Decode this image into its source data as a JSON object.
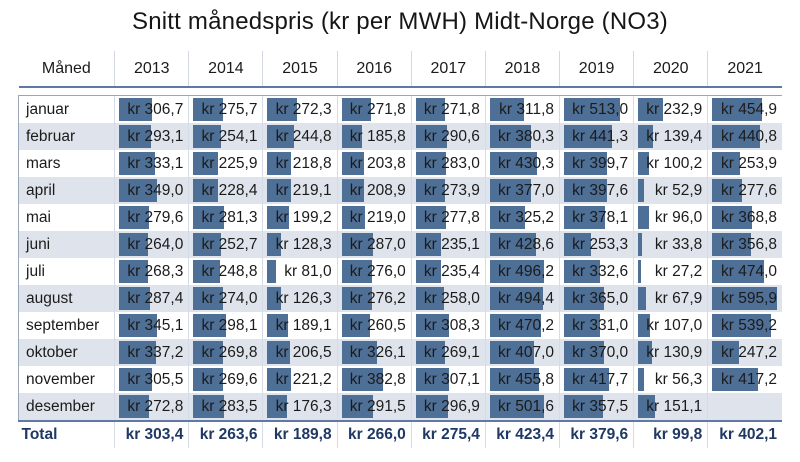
{
  "title": "Snitt månedspris (kr per MWH) Midt-Norge (NO3)",
  "chart_data": {
    "type": "table",
    "title": "Snitt månedspris (kr per MWH) Midt-Norge (NO3)",
    "row_header": "Måned",
    "years": [
      "2013",
      "2014",
      "2015",
      "2016",
      "2017",
      "2018",
      "2019",
      "2020",
      "2021"
    ],
    "value_max": 600,
    "rows": [
      {
        "month": "januar",
        "values": [
          306.7,
          275.7,
          272.3,
          271.8,
          271.8,
          311.8,
          513.0,
          232.9,
          454.9
        ],
        "labels": [
          "kr 306,7",
          "kr 275,7",
          "kr 272,3",
          "kr 271,8",
          "kr 271,8",
          "kr 311,8",
          "kr 513,0",
          "kr 232,9",
          "kr 454,9"
        ]
      },
      {
        "month": "februar",
        "values": [
          293.1,
          254.1,
          244.8,
          185.8,
          290.6,
          380.3,
          441.3,
          139.4,
          440.8
        ],
        "labels": [
          "kr 293,1",
          "kr 254,1",
          "kr 244,8",
          "kr 185,8",
          "kr 290,6",
          "kr 380,3",
          "kr 441,3",
          "kr 139,4",
          "kr 440,8"
        ]
      },
      {
        "month": "mars",
        "values": [
          333.1,
          225.9,
          218.8,
          203.8,
          283.0,
          430.3,
          399.7,
          100.2,
          253.9
        ],
        "labels": [
          "kr 333,1",
          "kr 225,9",
          "kr 218,8",
          "kr 203,8",
          "kr 283,0",
          "kr 430,3",
          "kr 399,7",
          "kr 100,2",
          "kr 253,9"
        ]
      },
      {
        "month": "april",
        "values": [
          349.0,
          228.4,
          219.1,
          208.9,
          273.9,
          377.0,
          397.6,
          52.9,
          277.6
        ],
        "labels": [
          "kr 349,0",
          "kr 228,4",
          "kr 219,1",
          "kr 208,9",
          "kr 273,9",
          "kr 377,0",
          "kr 397,6",
          "kr 52,9",
          "kr 277,6"
        ]
      },
      {
        "month": "mai",
        "values": [
          279.6,
          281.3,
          199.2,
          219.0,
          277.8,
          325.2,
          378.1,
          96.0,
          368.8
        ],
        "labels": [
          "kr 279,6",
          "kr 281,3",
          "kr 199,2",
          "kr 219,0",
          "kr 277,8",
          "kr 325,2",
          "kr 378,1",
          "kr 96,0",
          "kr 368,8"
        ]
      },
      {
        "month": "juni",
        "values": [
          264.0,
          252.7,
          128.3,
          287.0,
          235.1,
          428.6,
          253.3,
          33.8,
          356.8
        ],
        "labels": [
          "kr 264,0",
          "kr 252,7",
          "kr 128,3",
          "kr 287,0",
          "kr 235,1",
          "kr 428,6",
          "kr 253,3",
          "kr 33,8",
          "kr 356,8"
        ]
      },
      {
        "month": "juli",
        "values": [
          268.3,
          248.8,
          81.0,
          276.0,
          235.4,
          496.2,
          332.6,
          27.2,
          474.0
        ],
        "labels": [
          "kr 268,3",
          "kr 248,8",
          "kr 81,0",
          "kr 276,0",
          "kr 235,4",
          "kr 496,2",
          "kr 332,6",
          "kr 27,2",
          "kr 474,0"
        ]
      },
      {
        "month": "august",
        "values": [
          287.4,
          274.0,
          126.3,
          276.2,
          258.0,
          494.4,
          365.0,
          67.9,
          595.9
        ],
        "labels": [
          "kr 287,4",
          "kr 274,0",
          "kr 126,3",
          "kr 276,2",
          "kr 258,0",
          "kr 494,4",
          "kr 365,0",
          "kr 67,9",
          "kr 595,9"
        ]
      },
      {
        "month": "september",
        "values": [
          345.1,
          298.1,
          189.1,
          260.5,
          308.3,
          470.2,
          331.0,
          107.0,
          539.2
        ],
        "labels": [
          "kr 345,1",
          "kr 298,1",
          "kr 189,1",
          "kr 260,5",
          "kr 308,3",
          "kr 470,2",
          "kr 331,0",
          "kr 107,0",
          "kr 539,2"
        ]
      },
      {
        "month": "oktober",
        "values": [
          337.2,
          269.8,
          206.5,
          326.1,
          269.1,
          407.0,
          370.0,
          130.9,
          247.2
        ],
        "labels": [
          "kr 337,2",
          "kr 269,8",
          "kr 206,5",
          "kr 326,1",
          "kr 269,1",
          "kr 407,0",
          "kr 370,0",
          "kr 130,9",
          "kr 247,2"
        ]
      },
      {
        "month": "november",
        "values": [
          305.5,
          269.6,
          221.2,
          382.8,
          307.1,
          455.8,
          417.7,
          56.3,
          417.2
        ],
        "labels": [
          "kr 305,5",
          "kr 269,6",
          "kr 221,2",
          "kr 382,8",
          "kr 307,1",
          "kr 455,8",
          "kr 417,7",
          "kr 56,3",
          "kr 417,2"
        ]
      },
      {
        "month": "desember",
        "values": [
          272.8,
          283.5,
          176.3,
          291.5,
          296.9,
          501.6,
          357.5,
          151.1,
          null
        ],
        "labels": [
          "kr 272,8",
          "kr 283,5",
          "kr 176,3",
          "kr 291,5",
          "kr 296,9",
          "kr 501,6",
          "kr 357,5",
          "kr 151,1",
          ""
        ]
      }
    ],
    "total": {
      "label": "Total",
      "values": [
        303.4,
        263.6,
        189.8,
        266.0,
        275.4,
        423.4,
        379.6,
        99.8,
        402.1
      ],
      "labels": [
        "kr 303,4",
        "kr 263,6",
        "kr 189,8",
        "kr 266,0",
        "kr 275,4",
        "kr 423,4",
        "kr 379,6",
        "kr 99,8",
        "kr 402,1"
      ]
    },
    "bar_color": "#4e6f96"
  }
}
